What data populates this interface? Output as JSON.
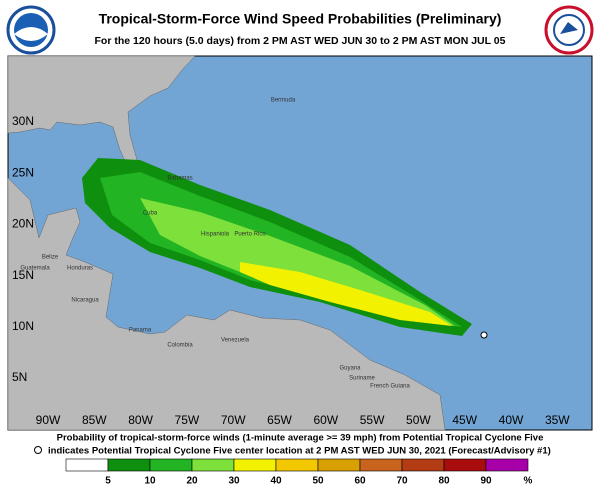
{
  "header": {
    "title": "Tropical-Storm-Force Wind Speed Probabilities (Preliminary)",
    "subtitle": "For the 120 hours (5.0 days) from 2 PM AST WED JUN 30 to 2 PM AST MON JUL 05"
  },
  "map": {
    "longitude_labels": [
      "90W",
      "85W",
      "80W",
      "75W",
      "70W",
      "65W",
      "60W",
      "55W",
      "50W",
      "45W",
      "40W",
      "35W"
    ],
    "latitude_labels": [
      "30N",
      "25N",
      "20N",
      "15N",
      "10N",
      "5N"
    ],
    "places": [
      "Bermuda",
      "Bahamas",
      "Cuba",
      "Hispaniola",
      "Puerto Rico",
      "Belize",
      "Guatemala",
      "Honduras",
      "Nicaragua",
      "Panama",
      "Colombia",
      "Venezuela",
      "Guyana",
      "Suriname",
      "French Guiana"
    ]
  },
  "footer": {
    "line1": "Probability of tropical-storm-force winds (1-minute average >= 39 mph) from Potential Tropical Cyclone Five",
    "line2": "indicates Potential Tropical Cyclone Five center location at 2 PM AST WED JUN 30, 2021 (Forecast/Advisory #1)"
  },
  "legend": {
    "colors": [
      "#ffffff",
      "#0e8f0e",
      "#22b422",
      "#7ee03a",
      "#f2f200",
      "#f4c800",
      "#d8a000",
      "#c8641e",
      "#b43c14",
      "#a80c0c",
      "#a800a8"
    ],
    "labels": [
      5,
      10,
      20,
      30,
      40,
      50,
      60,
      70,
      80,
      90
    ],
    "unit": "%"
  }
}
